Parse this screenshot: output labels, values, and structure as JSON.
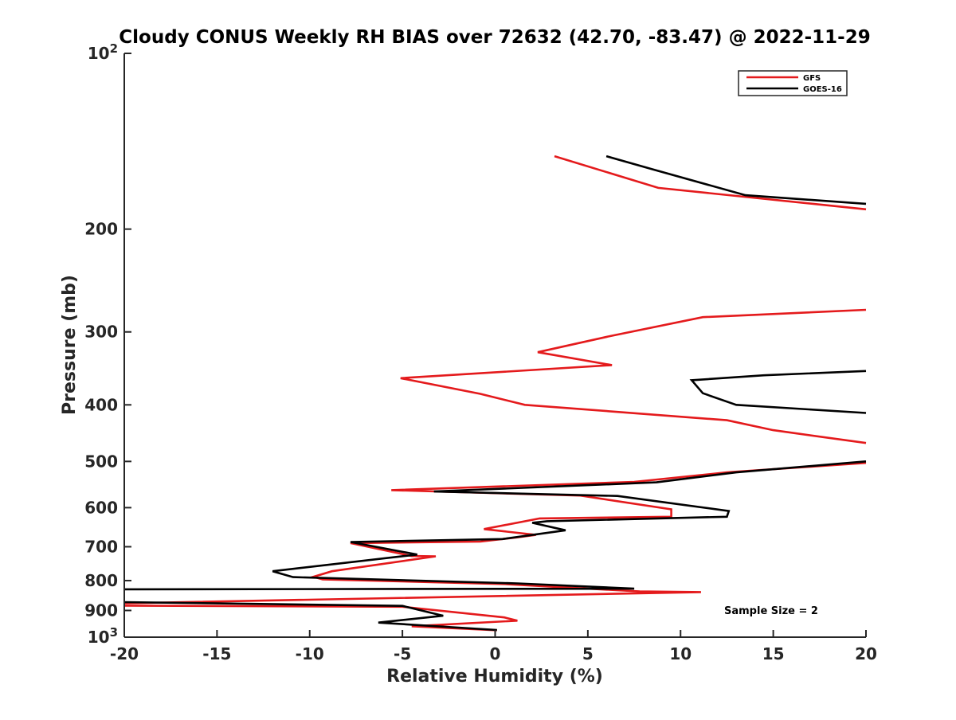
{
  "chart_data": {
    "type": "line",
    "title": "Cloudy CONUS Weekly RH BIAS over 72632 (42.70, -83.47) @ 2022-11-29",
    "xlabel": "Relative Humidity (%)",
    "ylabel": "Pressure (mb)",
    "xlim": [
      -20,
      20
    ],
    "ylim": [
      100,
      1000
    ],
    "y_scale": "log",
    "y_reversed": true,
    "x_ticks": [
      -20,
      -15,
      -10,
      -5,
      0,
      5,
      10,
      15,
      20
    ],
    "x_tick_labels": [
      "-20",
      "-15",
      "-10",
      "-5",
      "0",
      "5",
      "10",
      "15",
      "20"
    ],
    "y_ticks": [
      100,
      200,
      300,
      400,
      500,
      600,
      700,
      800,
      900,
      1000
    ],
    "y_tick_labels": [
      {
        "base": "10",
        "exp": "2"
      },
      {
        "base": "200",
        "exp": ""
      },
      {
        "base": "300",
        "exp": ""
      },
      {
        "base": "400",
        "exp": ""
      },
      {
        "base": "500",
        "exp": ""
      },
      {
        "base": "600",
        "exp": ""
      },
      {
        "base": "700",
        "exp": ""
      },
      {
        "base": "800",
        "exp": ""
      },
      {
        "base": "900",
        "exp": ""
      },
      {
        "base": "10",
        "exp": "3"
      }
    ],
    "grid": false,
    "legend_position": "top-right",
    "annotation": "Sample Size = 2",
    "series": [
      {
        "name": "GFS",
        "color": "#e41a1c",
        "segments": [
          [
            [
              3.2,
              150
            ],
            [
              8.8,
              170
            ],
            [
              20,
              185
            ]
          ],
          [
            [
              20,
              275
            ],
            [
              11.2,
              283
            ],
            [
              6.2,
              305
            ],
            [
              2.3,
              325
            ],
            [
              6.3,
              342
            ],
            [
              -5.1,
              360
            ],
            [
              -0.8,
              383
            ],
            [
              1.6,
              400
            ],
            [
              12.5,
              425
            ],
            [
              15,
              442
            ],
            [
              20,
              465
            ]
          ],
          [
            [
              20,
              503
            ],
            [
              12.5,
              522
            ],
            [
              7.5,
              542
            ],
            [
              -5.6,
              560
            ],
            [
              4.6,
              572
            ],
            [
              9.5,
              604
            ],
            [
              9.5,
              622
            ],
            [
              2.4,
              626
            ],
            [
              -0.6,
              653
            ],
            [
              2.2,
              668
            ],
            [
              1.1,
              675
            ],
            [
              -0.8,
              686
            ],
            [
              -7.8,
              690
            ],
            [
              -4.5,
              726
            ],
            [
              -3.2,
              727
            ],
            [
              -8.8,
              771
            ],
            [
              -9.8,
              788
            ],
            [
              -9.3,
              796
            ],
            [
              0.5,
              811
            ],
            [
              7.8,
              835
            ],
            [
              11.1,
              837
            ],
            [
              -20,
              875
            ]
          ],
          [
            [
              -20,
              883
            ],
            [
              -5,
              887
            ],
            [
              0.5,
              925
            ],
            [
              1.2,
              937
            ],
            [
              -4.5,
              958
            ],
            [
              0.1,
              973
            ]
          ]
        ]
      },
      {
        "name": "GOES-16",
        "color": "#000000",
        "segments": [
          [
            [
              6,
              150
            ],
            [
              8.5,
              158
            ],
            [
              13.5,
              175
            ],
            [
              20,
              181
            ]
          ],
          [
            [
              20,
              350
            ],
            [
              14.5,
              356
            ],
            [
              10.6,
              363
            ],
            [
              11.2,
              382
            ],
            [
              13,
              400
            ],
            [
              20,
              413
            ]
          ],
          [
            [
              20,
              500
            ],
            [
              13,
              522
            ],
            [
              8.7,
              543
            ],
            [
              -3.3,
              563
            ],
            [
              6.6,
              573
            ],
            [
              12.6,
              608
            ],
            [
              12.5,
              622
            ],
            [
              2.8,
              633
            ],
            [
              2,
              637
            ],
            [
              3.8,
              656
            ],
            [
              0.4,
              679
            ],
            [
              -7.8,
              687
            ],
            [
              -4.2,
              722
            ],
            [
              -12,
              771
            ],
            [
              -10.9,
              789
            ],
            [
              1.2,
              809
            ],
            [
              7.5,
              826
            ],
            [
              -20,
              828
            ]
          ],
          [
            [
              -20,
              871
            ],
            [
              -5,
              884
            ],
            [
              -2.8,
              919
            ],
            [
              -6.3,
              944
            ],
            [
              0.1,
              972
            ]
          ]
        ]
      }
    ]
  }
}
